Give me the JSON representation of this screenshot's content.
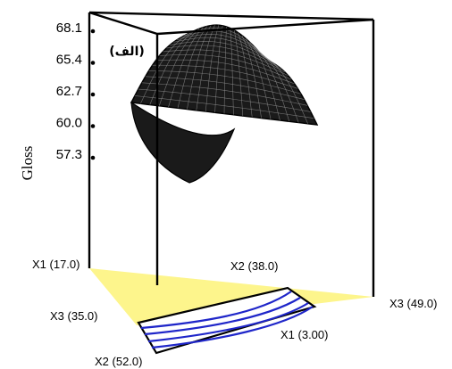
{
  "chart_data": {
    "type": "surface",
    "subtype": "mixture-design response surface with base contour plot",
    "ylabel": "Gloss",
    "zlim": [
      57.3,
      68.1
    ],
    "z_ticks": [
      "68.1",
      "65.4",
      "62.7",
      "60.0",
      "57.3"
    ],
    "annotation": "(الف)",
    "vertex_labels": {
      "x1_top": "X1 (17.0)",
      "x3_left": "X3 (35.0)",
      "x2_bottom": "X2 (52.0)",
      "x2_mid": "X2 (38.0)",
      "x1_right": "X1 (3.00)",
      "x3_right": "X3 (49.0)"
    },
    "surface_profile": [
      {
        "t": 0.0,
        "z": 60.6
      },
      {
        "t": 0.25,
        "z": 64.6
      },
      {
        "t": 0.5,
        "z": 66.4
      },
      {
        "t": 0.75,
        "z": 65.9
      },
      {
        "t": 1.0,
        "z": 61.3
      }
    ],
    "contour_count": 4,
    "colors": {
      "base_triangle": "#fdf58c",
      "contour_lines": "#1f26c9",
      "surface": "#1a1a1a",
      "mesh": "#9a9a9a"
    }
  }
}
